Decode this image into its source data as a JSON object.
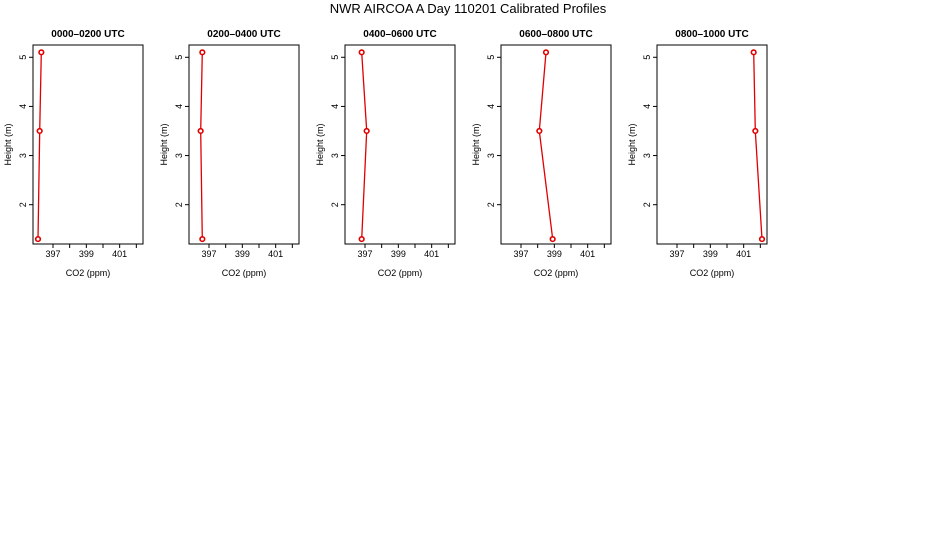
{
  "title": "NWR AIRCOA A  Day 110201  Calibrated Profiles",
  "colors": {
    "series": "#e00000",
    "axis": "#000000",
    "background": "#ffffff"
  },
  "chart_data": [
    {
      "type": "line",
      "title": "0000–0200 UTC",
      "xlabel": "CO2 (ppm)",
      "ylabel": "Height (m)",
      "xlim": [
        395.8,
        402.4
      ],
      "ylim": [
        1.2,
        5.25
      ],
      "xticks": [
        397,
        398,
        399,
        400,
        401,
        402
      ],
      "xtick_labels": [
        "397",
        "",
        "399",
        "",
        "401",
        ""
      ],
      "yticks": [
        2,
        3,
        4,
        5
      ],
      "ytick_labels": [
        "2",
        "3",
        "4",
        "5"
      ],
      "grid": false,
      "points": [
        {
          "x": 396.1,
          "y": 1.3
        },
        {
          "x": 396.2,
          "y": 3.5
        },
        {
          "x": 396.3,
          "y": 5.1
        }
      ]
    },
    {
      "type": "line",
      "title": "0200–0400 UTC",
      "xlabel": "CO2 (ppm)",
      "ylabel": "Height (m)",
      "xlim": [
        395.8,
        402.4
      ],
      "ylim": [
        1.2,
        5.25
      ],
      "xticks": [
        397,
        398,
        399,
        400,
        401,
        402
      ],
      "xtick_labels": [
        "397",
        "",
        "399",
        "",
        "401",
        ""
      ],
      "yticks": [
        2,
        3,
        4,
        5
      ],
      "ytick_labels": [
        "2",
        "3",
        "4",
        "5"
      ],
      "grid": false,
      "points": [
        {
          "x": 396.6,
          "y": 1.3
        },
        {
          "x": 396.5,
          "y": 3.5
        },
        {
          "x": 396.6,
          "y": 5.1
        }
      ]
    },
    {
      "type": "line",
      "title": "0400–0600 UTC",
      "xlabel": "CO2 (ppm)",
      "ylabel": "Height (m)",
      "xlim": [
        395.8,
        402.4
      ],
      "ylim": [
        1.2,
        5.25
      ],
      "xticks": [
        397,
        398,
        399,
        400,
        401,
        402
      ],
      "xtick_labels": [
        "397",
        "",
        "399",
        "",
        "401",
        ""
      ],
      "yticks": [
        2,
        3,
        4,
        5
      ],
      "ytick_labels": [
        "2",
        "3",
        "4",
        "5"
      ],
      "grid": false,
      "points": [
        {
          "x": 396.8,
          "y": 1.3
        },
        {
          "x": 397.1,
          "y": 3.5
        },
        {
          "x": 396.8,
          "y": 5.1
        }
      ]
    },
    {
      "type": "line",
      "title": "0600–0800 UTC",
      "xlabel": "CO2 (ppm)",
      "ylabel": "Height (m)",
      "xlim": [
        395.8,
        402.4
      ],
      "ylim": [
        1.2,
        5.25
      ],
      "xticks": [
        397,
        398,
        399,
        400,
        401,
        402
      ],
      "xtick_labels": [
        "397",
        "",
        "399",
        "",
        "401",
        ""
      ],
      "yticks": [
        2,
        3,
        4,
        5
      ],
      "ytick_labels": [
        "2",
        "3",
        "4",
        "5"
      ],
      "grid": false,
      "points": [
        {
          "x": 398.9,
          "y": 1.3
        },
        {
          "x": 398.1,
          "y": 3.5
        },
        {
          "x": 398.5,
          "y": 5.1
        }
      ]
    },
    {
      "type": "line",
      "title": "0800–1000 UTC",
      "xlabel": "CO2 (ppm)",
      "ylabel": "Height (m)",
      "xlim": [
        395.8,
        402.4
      ],
      "ylim": [
        1.2,
        5.25
      ],
      "xticks": [
        397,
        398,
        399,
        400,
        401,
        402
      ],
      "xtick_labels": [
        "397",
        "",
        "399",
        "",
        "401",
        ""
      ],
      "yticks": [
        2,
        3,
        4,
        5
      ],
      "ytick_labels": [
        "2",
        "3",
        "4",
        "5"
      ],
      "grid": false,
      "points": [
        {
          "x": 402.1,
          "y": 1.3
        },
        {
          "x": 401.7,
          "y": 3.5
        },
        {
          "x": 401.6,
          "y": 5.1
        }
      ]
    }
  ]
}
